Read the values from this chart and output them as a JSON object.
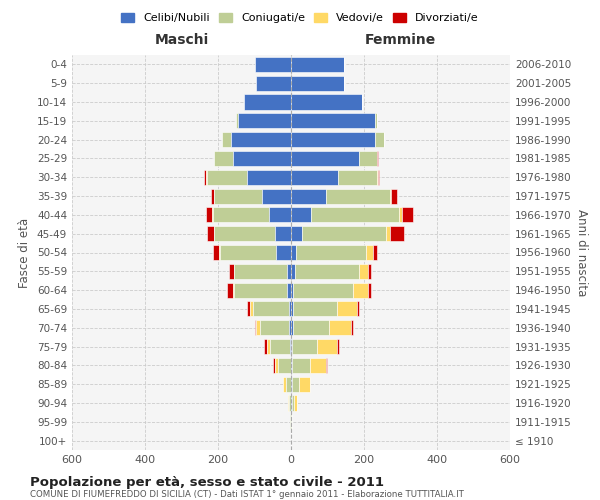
{
  "age_groups": [
    "100+",
    "95-99",
    "90-94",
    "85-89",
    "80-84",
    "75-79",
    "70-74",
    "65-69",
    "60-64",
    "55-59",
    "50-54",
    "45-49",
    "40-44",
    "35-39",
    "30-34",
    "25-29",
    "20-24",
    "15-19",
    "10-14",
    "5-9",
    "0-4"
  ],
  "birth_years": [
    "≤ 1910",
    "1911-1915",
    "1916-1920",
    "1921-1925",
    "1926-1930",
    "1931-1935",
    "1936-1940",
    "1941-1945",
    "1946-1950",
    "1951-1955",
    "1956-1960",
    "1961-1965",
    "1966-1970",
    "1971-1975",
    "1976-1980",
    "1981-1985",
    "1986-1990",
    "1991-1995",
    "1996-2000",
    "2001-2005",
    "2006-2010"
  ],
  "male": {
    "celibi": [
      0,
      0,
      0,
      0,
      0,
      2,
      5,
      5,
      10,
      10,
      40,
      45,
      60,
      80,
      120,
      160,
      165,
      145,
      130,
      95,
      100
    ],
    "coniugati": [
      0,
      2,
      5,
      15,
      35,
      55,
      80,
      100,
      145,
      145,
      155,
      165,
      155,
      130,
      110,
      50,
      25,
      5,
      0,
      0,
      0
    ],
    "vedovi": [
      0,
      0,
      2,
      8,
      10,
      10,
      10,
      8,
      5,
      2,
      2,
      2,
      2,
      2,
      2,
      0,
      0,
      0,
      0,
      0,
      0
    ],
    "divorziati": [
      0,
      0,
      0,
      0,
      3,
      8,
      5,
      8,
      15,
      12,
      18,
      18,
      15,
      8,
      5,
      2,
      0,
      0,
      0,
      0,
      0
    ]
  },
  "female": {
    "nubili": [
      0,
      0,
      2,
      2,
      2,
      2,
      5,
      5,
      5,
      10,
      15,
      30,
      55,
      95,
      130,
      185,
      230,
      230,
      195,
      145,
      145
    ],
    "coniugate": [
      0,
      2,
      5,
      20,
      50,
      70,
      100,
      120,
      165,
      175,
      190,
      230,
      240,
      175,
      105,
      50,
      25,
      5,
      0,
      0,
      0
    ],
    "vedove": [
      0,
      2,
      10,
      30,
      45,
      55,
      60,
      55,
      40,
      25,
      20,
      10,
      8,
      5,
      2,
      0,
      0,
      0,
      0,
      0,
      0
    ],
    "divorziate": [
      0,
      0,
      0,
      0,
      2,
      5,
      5,
      5,
      10,
      10,
      10,
      40,
      30,
      15,
      5,
      2,
      0,
      0,
      0,
      0,
      0
    ]
  },
  "colors": {
    "celibi": "#4472C4",
    "coniugati": "#BFCE96",
    "vedovi": "#FFD966",
    "divorziati": "#CC0000"
  },
  "title": "Popolazione per età, sesso e stato civile - 2011",
  "subtitle": "COMUNE DI FIUMEFREDDO DI SICILIA (CT) - Dati ISTAT 1° gennaio 2011 - Elaborazione TUTTITALIA.IT",
  "xlabel_left": "Maschi",
  "xlabel_right": "Femmine",
  "ylabel_left": "Fasce di età",
  "ylabel_right": "Anni di nascita",
  "xlim": 600,
  "bg_color": "#FFFFFF",
  "grid_color": "#CCCCCC"
}
